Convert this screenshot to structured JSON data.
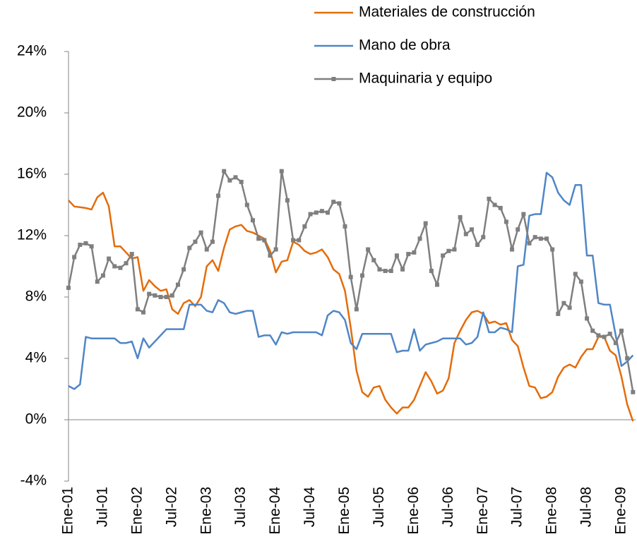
{
  "chart_data": {
    "type": "line",
    "categories": [
      "Ene-01",
      null,
      null,
      null,
      null,
      null,
      "Jul-01",
      null,
      null,
      null,
      null,
      null,
      "Ene-02",
      null,
      null,
      null,
      null,
      null,
      "Jul-02",
      null,
      null,
      null,
      null,
      null,
      "Ene-03",
      null,
      null,
      null,
      null,
      null,
      "Jul-03",
      null,
      null,
      null,
      null,
      null,
      "Ene-04",
      null,
      null,
      null,
      null,
      null,
      "Jul-04",
      null,
      null,
      null,
      null,
      null,
      "Ene-05",
      null,
      null,
      null,
      null,
      null,
      "Jul-05",
      null,
      null,
      null,
      null,
      null,
      "Ene-06",
      null,
      null,
      null,
      null,
      null,
      "Jul-06",
      null,
      null,
      null,
      null,
      null,
      "Ene-07",
      null,
      null,
      null,
      null,
      null,
      "Jul-07",
      null,
      null,
      null,
      null,
      null,
      "Ene-08",
      null,
      null,
      null,
      null,
      null,
      "Jul-08",
      null,
      null,
      null,
      null,
      null,
      "Ene-09",
      null,
      null
    ],
    "series": [
      {
        "name": "Materiales de construcción",
        "color": "#e46c0a",
        "marker": false,
        "values": [
          14.3,
          13.9,
          13.85,
          13.8,
          13.7,
          14.5,
          14.8,
          13.9,
          11.3,
          11.3,
          10.9,
          10.5,
          10.6,
          8.4,
          9.1,
          8.7,
          8.4,
          8.5,
          7.2,
          6.9,
          7.6,
          7.8,
          7.4,
          8.0,
          10.0,
          10.4,
          9.7,
          11.2,
          12.4,
          12.6,
          12.7,
          12.3,
          12.2,
          12.0,
          11.8,
          11.0,
          9.6,
          10.3,
          10.4,
          11.6,
          11.4,
          11.0,
          10.8,
          10.9,
          11.1,
          10.6,
          9.8,
          9.5,
          8.4,
          6.0,
          3.2,
          1.8,
          1.5,
          2.1,
          2.2,
          1.3,
          0.8,
          0.4,
          0.8,
          0.8,
          1.3,
          2.2,
          3.1,
          2.5,
          1.7,
          1.9,
          2.7,
          5.0,
          5.8,
          6.5,
          7.0,
          7.1,
          6.9,
          6.3,
          6.4,
          6.2,
          6.3,
          5.2,
          4.8,
          3.4,
          2.2,
          2.1,
          1.4,
          1.5,
          1.8,
          2.8,
          3.4,
          3.6,
          3.4,
          4.1,
          4.6,
          4.6,
          5.4,
          5.4,
          4.5,
          4.2,
          2.8,
          1.0,
          -0.1
        ]
      },
      {
        "name": "Mano de obra",
        "color": "#4f86c6",
        "marker": false,
        "values": [
          2.2,
          2.0,
          2.3,
          5.4,
          5.3,
          5.3,
          5.3,
          5.3,
          5.3,
          5.0,
          5.0,
          5.1,
          4.0,
          5.3,
          4.7,
          5.1,
          5.5,
          5.9,
          5.9,
          5.9,
          5.9,
          7.5,
          7.5,
          7.5,
          7.1,
          7.0,
          7.8,
          7.6,
          7.0,
          6.9,
          7.0,
          7.1,
          7.1,
          5.4,
          5.5,
          5.5,
          4.9,
          5.7,
          5.6,
          5.7,
          5.7,
          5.7,
          5.7,
          5.7,
          5.5,
          6.8,
          7.1,
          7.0,
          6.5,
          5.0,
          4.6,
          5.6,
          5.6,
          5.6,
          5.6,
          5.6,
          5.6,
          4.4,
          4.5,
          4.5,
          5.9,
          4.5,
          4.9,
          5.0,
          5.1,
          5.3,
          5.3,
          5.3,
          5.3,
          4.9,
          5.0,
          5.4,
          7.0,
          5.7,
          5.7,
          6.0,
          5.9,
          5.7,
          10.0,
          10.1,
          13.3,
          13.4,
          13.4,
          16.1,
          15.8,
          14.8,
          14.3,
          14.0,
          15.3,
          15.3,
          10.7,
          10.7,
          7.6,
          7.5,
          7.5,
          5.5,
          3.5,
          3.8,
          4.2
        ]
      },
      {
        "name": "Maquinaria y equipo",
        "color": "#7f7f7f",
        "marker": true,
        "values": [
          8.6,
          10.6,
          11.4,
          11.5,
          11.3,
          9.0,
          9.4,
          10.5,
          10.0,
          9.9,
          10.2,
          10.8,
          7.2,
          7.0,
          8.2,
          8.1,
          8.0,
          8.0,
          8.1,
          8.8,
          9.8,
          11.2,
          11.6,
          12.2,
          11.1,
          11.6,
          14.6,
          16.2,
          15.6,
          15.8,
          15.5,
          14.0,
          13.0,
          11.8,
          11.7,
          10.7,
          11.1,
          16.2,
          14.3,
          11.7,
          11.7,
          12.6,
          13.4,
          13.5,
          13.6,
          13.5,
          14.2,
          14.1,
          12.6,
          9.3,
          7.2,
          9.4,
          11.1,
          10.4,
          9.8,
          9.7,
          9.7,
          10.7,
          9.8,
          10.8,
          10.9,
          11.8,
          12.8,
          9.7,
          8.8,
          10.7,
          11.0,
          11.1,
          13.2,
          12.1,
          12.4,
          11.4,
          11.9,
          14.4,
          14.0,
          13.8,
          12.9,
          11.1,
          12.4,
          13.4,
          11.5,
          11.9,
          11.8,
          11.8,
          11.1,
          6.9,
          7.6,
          7.3,
          9.5,
          9.0,
          6.6,
          5.8,
          5.5,
          5.4,
          5.6,
          5.0,
          5.8,
          4.0,
          1.8
        ]
      }
    ],
    "ylim": [
      -4,
      24
    ],
    "yticks": [
      {
        "value": -4,
        "label": "-4%"
      },
      {
        "value": 0,
        "label": "0%"
      },
      {
        "value": 4,
        "label": "4%"
      },
      {
        "value": 8,
        "label": "8%"
      },
      {
        "value": 12,
        "label": "12%"
      },
      {
        "value": 16,
        "label": "16%"
      },
      {
        "value": 20,
        "label": "20%"
      },
      {
        "value": 24,
        "label": "24%"
      }
    ],
    "legend": "top-right",
    "grid": false
  }
}
